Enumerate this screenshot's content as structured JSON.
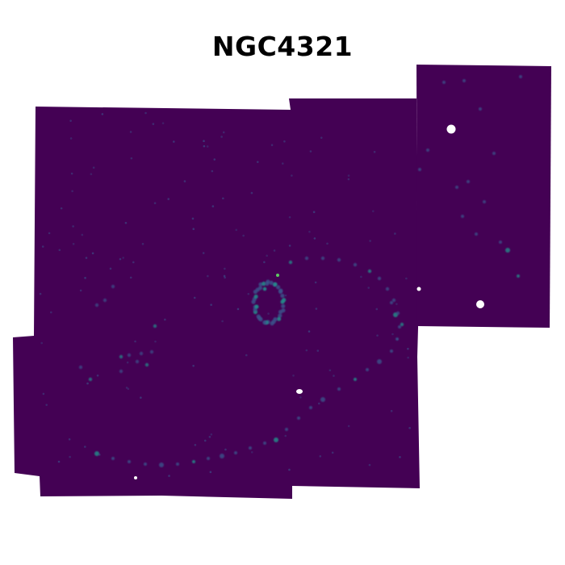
{
  "figure": {
    "title": "NGC4321",
    "colormap": "viridis",
    "background_color": "#440154",
    "blank_color": "#ffffff",
    "highlight_colors": [
      "#3b528b",
      "#21918c",
      "#5ec962"
    ]
  }
}
